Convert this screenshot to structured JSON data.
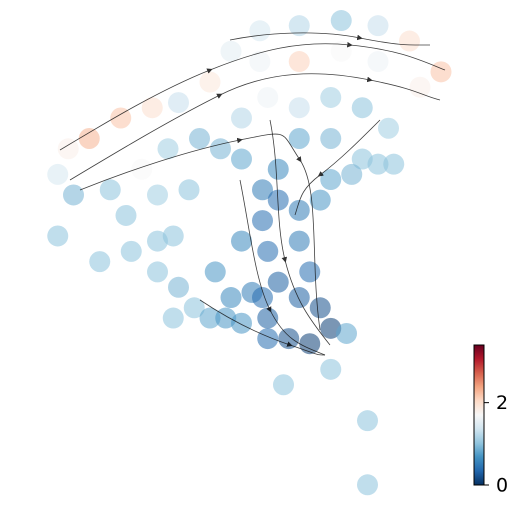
{
  "chart_data": {
    "type": "scatter",
    "x": [
      49.5,
      57,
      65,
      72,
      78,
      84,
      80,
      72,
      65,
      57,
      49.5,
      44,
      40,
      34,
      29,
      23,
      17,
      13,
      11,
      14,
      21,
      27,
      32,
      38,
      46,
      51,
      57,
      63,
      69,
      74,
      69,
      63,
      57,
      53,
      50,
      46,
      42,
      36,
      30,
      24,
      11,
      19,
      25,
      30,
      33,
      30,
      34,
      37,
      41,
      46,
      50,
      53,
      57,
      61,
      63,
      67,
      72,
      75,
      51,
      57,
      59,
      53,
      48,
      44,
      46,
      51,
      57,
      61,
      63,
      59,
      55,
      51,
      50,
      66,
      63,
      54,
      70,
      70,
      40,
      43,
      33
    ],
    "y": [
      94,
      95,
      96,
      95,
      92,
      86,
      83,
      88,
      90,
      88,
      88,
      90,
      84,
      80,
      79,
      77,
      73,
      71,
      66,
      62,
      63,
      67,
      71,
      73,
      77,
      81,
      79,
      81,
      79,
      75,
      69,
      73,
      73,
      67,
      63,
      69,
      71,
      63,
      62,
      58,
      54,
      49,
      51,
      53,
      54,
      47,
      44,
      40,
      47,
      53,
      57,
      61,
      59,
      61,
      65,
      66,
      68,
      68,
      51,
      53,
      47,
      45,
      43,
      42,
      37,
      38,
      42,
      40,
      36,
      33,
      34,
      34,
      42,
      35,
      28,
      25,
      18,
      5.5,
      38,
      38,
      38
    ],
    "values": [
      1.4,
      1.2,
      1.0,
      1.3,
      2.0,
      2.2,
      1.8,
      1.6,
      1.7,
      2.1,
      1.6,
      1.5,
      1.9,
      1.3,
      2.0,
      2.2,
      2.3,
      1.8,
      1.4,
      0.9,
      1.0,
      1.7,
      1.1,
      0.9,
      1.2,
      1.6,
      1.3,
      1.1,
      1.0,
      1.1,
      1.0,
      0.9,
      0.8,
      0.6,
      0.5,
      0.8,
      0.9,
      1.0,
      1.1,
      1.0,
      1.0,
      1.0,
      1.0,
      1.0,
      1.0,
      1.0,
      0.9,
      1.0,
      0.7,
      0.6,
      0.4,
      0.4,
      0.5,
      0.7,
      0.8,
      0.9,
      1.0,
      1.0,
      0.4,
      0.5,
      0.4,
      0.3,
      0.5,
      0.6,
      0.7,
      0.3,
      0.3,
      0.2,
      0.1,
      0.1,
      0.2,
      0.4,
      0.4,
      0.8,
      1.0,
      1.0,
      1.0,
      1.0,
      0.8,
      0.7,
      1.0
    ],
    "xlim": [
      0,
      100
    ],
    "ylim": [
      0,
      100
    ],
    "colormap": [
      "#053061",
      "#2166ac",
      "#4393c3",
      "#92c5de",
      "#d1e5f0",
      "#f7f7f7",
      "#fddbc7",
      "#f4a582",
      "#d6604d",
      "#b2182b",
      "#67001f"
    ],
    "clim": [
      0,
      3.4
    ],
    "cticks": [
      0,
      2
    ]
  }
}
